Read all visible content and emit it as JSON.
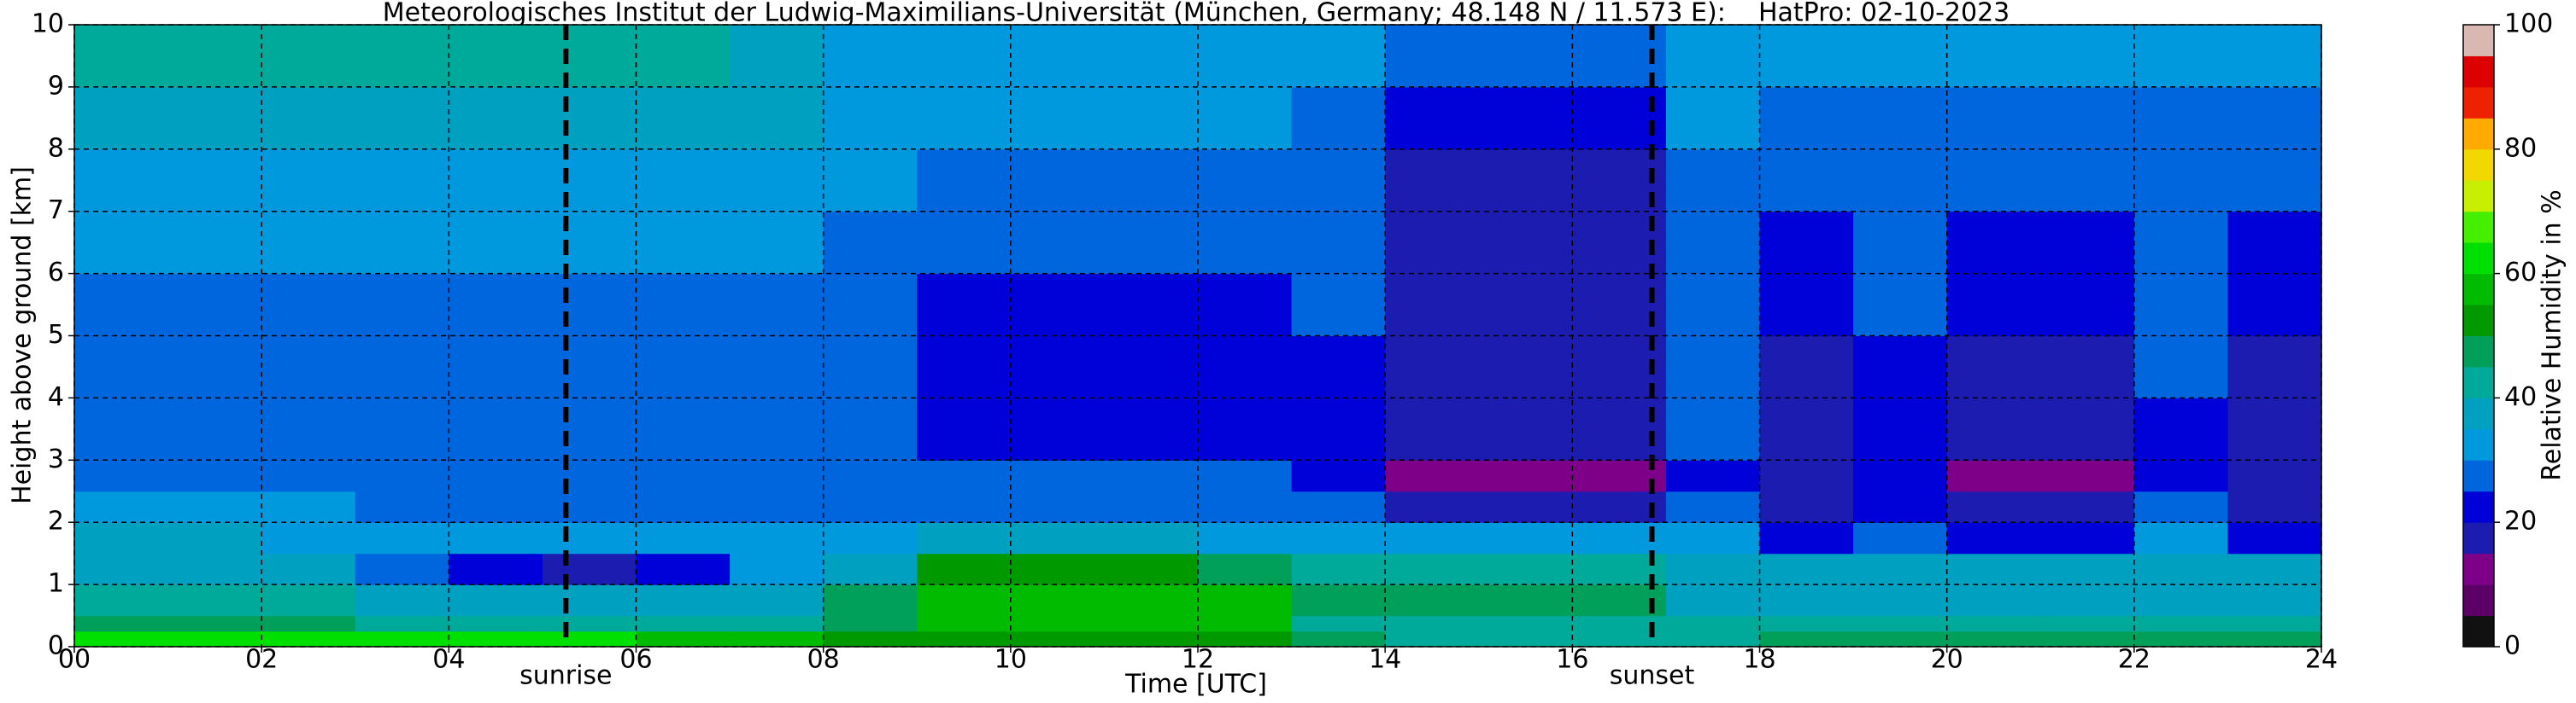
{
  "chart_data": {
    "type": "heatmap",
    "title": "Meteorologisches Institut der Ludwig-Maximilians-Universität (München, Germany; 48.148 N / 11.573 E):    HatPro: 02-10-2023",
    "x_label": "Time [UTC]",
    "y_label": "Height above ground [km]",
    "xlim": [
      0,
      24
    ],
    "ylim": [
      0,
      10
    ],
    "xticks": [
      {
        "value": 0,
        "label": "00"
      },
      {
        "value": 2,
        "label": "02"
      },
      {
        "value": 4,
        "label": "04"
      },
      {
        "value": 6,
        "label": "06"
      },
      {
        "value": 8,
        "label": "08"
      },
      10,
      12,
      14,
      16,
      18,
      20,
      22,
      24
    ],
    "yticks": [
      0,
      1,
      2,
      3,
      4,
      5,
      6,
      7,
      8,
      9,
      10
    ],
    "grid": true,
    "x_edges": [
      0,
      1,
      2,
      3,
      4,
      5,
      6,
      7,
      8,
      9,
      10,
      11,
      12,
      13,
      14,
      15,
      16,
      17,
      18,
      19,
      20,
      21,
      22,
      23,
      24
    ],
    "y_edges": [
      0,
      0.25,
      0.5,
      1,
      1.5,
      2,
      2.5,
      3,
      4,
      5,
      6,
      7,
      8,
      9,
      10
    ],
    "z": [
      [
        62,
        46,
        40,
        38,
        36,
        30,
        28,
        27,
        27,
        29,
        30,
        33,
        38,
        41
      ],
      [
        62,
        46,
        40,
        38,
        36,
        30,
        28,
        27,
        27,
        29,
        30,
        33,
        38,
        41
      ],
      [
        62,
        46,
        40,
        36,
        34,
        30,
        28,
        27,
        27,
        29,
        30,
        33,
        38,
        41
      ],
      [
        60,
        44,
        38,
        26,
        33,
        29,
        27,
        26,
        27,
        29,
        30,
        33,
        38,
        41
      ],
      [
        60,
        44,
        37,
        20,
        33,
        29,
        27,
        26,
        27,
        29,
        30,
        33,
        38,
        41
      ],
      [
        60,
        44,
        37,
        19,
        32,
        29,
        27,
        26,
        27,
        29,
        30,
        33,
        38,
        41
      ],
      [
        58,
        44,
        37,
        22,
        33,
        29,
        27,
        26,
        27,
        29,
        30,
        33,
        38,
        40
      ],
      [
        58,
        42,
        36,
        30,
        33,
        29,
        27,
        26,
        26,
        28,
        30,
        32,
        36,
        38
      ],
      [
        52,
        48,
        47,
        37,
        32,
        28,
        26,
        25,
        25,
        27,
        29,
        30,
        31,
        32
      ],
      [
        53,
        56,
        58,
        52,
        35,
        28,
        25,
        23,
        22,
        23,
        27,
        29,
        30,
        30
      ],
      [
        53,
        57,
        59,
        52,
        35,
        28,
        25,
        23,
        22,
        23,
        27,
        29,
        30,
        30
      ],
      [
        53,
        57,
        58,
        50,
        35,
        28,
        25,
        23,
        22,
        23,
        27,
        29,
        30,
        30
      ],
      [
        52,
        55,
        56,
        47,
        34,
        28,
        25,
        23,
        23,
        24,
        27,
        29,
        30,
        30
      ],
      [
        45,
        44,
        47,
        40,
        32,
        27,
        24,
        23,
        23,
        25,
        27,
        28,
        29,
        30
      ],
      [
        40,
        43,
        48,
        41,
        30,
        18,
        14,
        16,
        18,
        18,
        18,
        19,
        22,
        26
      ],
      [
        40,
        43,
        49,
        42,
        30,
        17,
        13,
        16,
        18,
        18,
        18,
        19,
        22,
        26
      ],
      [
        40,
        43,
        49,
        42,
        30,
        17,
        13,
        16,
        18,
        18,
        18,
        19,
        21,
        26
      ],
      [
        42,
        40,
        38,
        36,
        30,
        25,
        24,
        25,
        26,
        27,
        28,
        29,
        30,
        30
      ],
      [
        46,
        40,
        38,
        37,
        22,
        18,
        16,
        18,
        19,
        21,
        24,
        27,
        29,
        30
      ],
      [
        46,
        40,
        38,
        37,
        27,
        24,
        22,
        23,
        24,
        25,
        27,
        28,
        29,
        30
      ],
      [
        46,
        40,
        38,
        37,
        21,
        17,
        14,
        17,
        19,
        21,
        24,
        27,
        29,
        30
      ],
      [
        46,
        40,
        38,
        37,
        21,
        17,
        14,
        17,
        19,
        21,
        24,
        27,
        29,
        30
      ],
      [
        45,
        40,
        38,
        36,
        30,
        26,
        24,
        24,
        25,
        26,
        27,
        28,
        29,
        30
      ],
      [
        45,
        40,
        38,
        36,
        20,
        17,
        16,
        18,
        19,
        21,
        23,
        26,
        29,
        30
      ]
    ],
    "annotations": [
      {
        "text": "sunrise",
        "x": 5.25
      },
      {
        "text": "sunset",
        "x": 16.85
      }
    ],
    "colorbar": {
      "label": "Relative Humidity in %",
      "levels": [
        0,
        5,
        10,
        15,
        20,
        25,
        30,
        35,
        40,
        45,
        50,
        55,
        60,
        65,
        70,
        75,
        80,
        85,
        90,
        95,
        100
      ],
      "colors": [
        "#111111",
        "#5c0068",
        "#7f0088",
        "#1c1cb0",
        "#0000d8",
        "#0066dd",
        "#0099dd",
        "#00a0c0",
        "#00aa9a",
        "#00a05a",
        "#009900",
        "#00bb00",
        "#00e000",
        "#44f000",
        "#c8ee00",
        "#f0d800",
        "#ffaa00",
        "#ee2200",
        "#dd0000",
        "#d8b8b0"
      ],
      "ticks": [
        0,
        20,
        40,
        60,
        80,
        100
      ]
    }
  }
}
